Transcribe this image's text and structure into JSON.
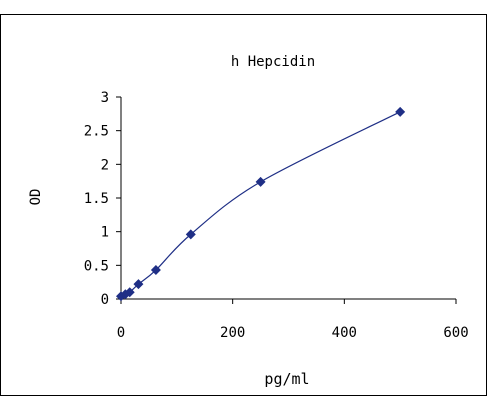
{
  "chart_data": {
    "type": "scatter",
    "title": "h Hepcidin",
    "xlabel": "pg/ml",
    "ylabel": "OD",
    "xlim": [
      0,
      600
    ],
    "ylim": [
      0,
      3
    ],
    "x_ticks": [
      "0",
      "200",
      "400",
      "600"
    ],
    "y_ticks": [
      "0",
      "0.5",
      "1",
      "1.5",
      "2",
      "2.5",
      "3"
    ],
    "grid": false,
    "legend": "none",
    "series": [
      {
        "marker": "diamond",
        "line": "smooth",
        "color": "#1f2f86",
        "points": [
          {
            "x": 0,
            "y": 0.04
          },
          {
            "x": 7.8,
            "y": 0.07
          },
          {
            "x": 15.6,
            "y": 0.1
          },
          {
            "x": 31.25,
            "y": 0.22
          },
          {
            "x": 62.5,
            "y": 0.43
          },
          {
            "x": 125,
            "y": 0.96
          },
          {
            "x": 250,
            "y": 1.74
          },
          {
            "x": 500,
            "y": 2.78
          }
        ]
      }
    ]
  }
}
